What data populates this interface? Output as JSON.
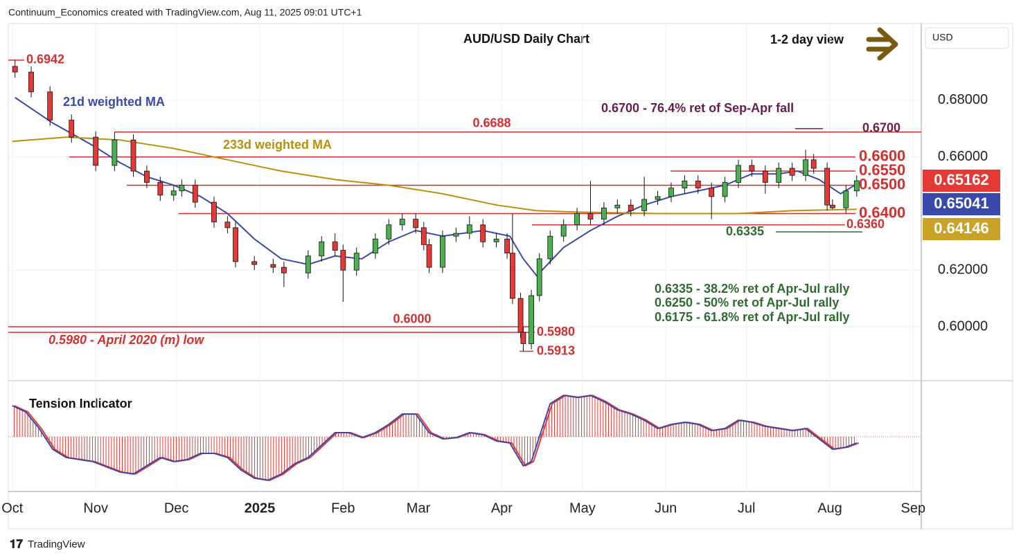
{
  "header": "Continuum_Economics created with TradingView.com, Aug 11, 2025 09:01 UTC+1",
  "footer": "TradingView",
  "chart_data": {
    "type": "candlestick",
    "title": "AUD/USD Daily Chart",
    "subtitle": "1-2 day view",
    "currency": "USD",
    "x": [
      1,
      7,
      14,
      22,
      31,
      38,
      45,
      50,
      55,
      60,
      63,
      68,
      75,
      80,
      83,
      90,
      97,
      101,
      110,
      115,
      120,
      123,
      128,
      135,
      140,
      145,
      150,
      153,
      155,
      160,
      165,
      170,
      175,
      180,
      184,
      186,
      189,
      190,
      193,
      196,
      200,
      205,
      210,
      215,
      220,
      225,
      230,
      235,
      240,
      245,
      250,
      255,
      260,
      265,
      270,
      275,
      280,
      285,
      290,
      295,
      298,
      303,
      305,
      310,
      314
    ],
    "open": [
      0.692,
      0.69,
      0.683,
      0.673,
      0.667,
      0.657,
      0.666,
      0.655,
      0.651,
      0.6465,
      0.648,
      0.65,
      0.644,
      0.637,
      0.635,
      0.623,
      0.622,
      0.621,
      0.619,
      0.625,
      0.63,
      0.627,
      0.62,
      0.626,
      0.631,
      0.636,
      0.638,
      0.635,
      0.629,
      0.621,
      0.632,
      0.633,
      0.636,
      0.63,
      0.631,
      0.626,
      0.61,
      0.598,
      0.594,
      0.611,
      0.624,
      0.632,
      0.636,
      0.64,
      0.638,
      0.642,
      0.643,
      0.641,
      0.645,
      0.646,
      0.649,
      0.6515,
      0.649,
      0.646,
      0.651,
      0.657,
      0.655,
      0.651,
      0.656,
      0.6535,
      0.659,
      0.656,
      0.643,
      0.642,
      0.648
    ],
    "high": [
      0.6942,
      0.692,
      0.685,
      0.675,
      0.669,
      0.6688,
      0.668,
      0.657,
      0.653,
      0.65,
      0.652,
      0.652,
      0.646,
      0.639,
      0.637,
      0.625,
      0.624,
      0.623,
      0.627,
      0.632,
      0.633,
      0.629,
      0.628,
      0.633,
      0.638,
      0.64,
      0.64,
      0.637,
      0.631,
      0.634,
      0.635,
      0.639,
      0.638,
      0.633,
      0.633,
      0.64,
      0.612,
      0.6,
      0.613,
      0.626,
      0.634,
      0.638,
      0.642,
      0.6515,
      0.644,
      0.645,
      0.645,
      0.653,
      0.648,
      0.651,
      0.6535,
      0.6535,
      0.651,
      0.653,
      0.659,
      0.659,
      0.657,
      0.658,
      0.658,
      0.6625,
      0.661,
      0.658,
      0.645,
      0.65,
      0.6535
    ],
    "low": [
      0.688,
      0.681,
      0.671,
      0.665,
      0.655,
      0.655,
      0.653,
      0.649,
      0.6445,
      0.6445,
      0.646,
      0.642,
      0.635,
      0.633,
      0.621,
      0.62,
      0.619,
      0.614,
      0.617,
      0.623,
      0.625,
      0.6088,
      0.618,
      0.624,
      0.629,
      0.634,
      0.633,
      0.627,
      0.619,
      0.619,
      0.63,
      0.631,
      0.628,
      0.628,
      0.624,
      0.608,
      0.596,
      0.5913,
      0.592,
      0.609,
      0.622,
      0.63,
      0.634,
      0.636,
      0.636,
      0.64,
      0.639,
      0.639,
      0.643,
      0.644,
      0.647,
      0.647,
      0.638,
      0.644,
      0.649,
      0.653,
      0.647,
      0.649,
      0.6515,
      0.6515,
      0.654,
      0.641,
      0.6415,
      0.64,
      0.646
    ],
    "close": [
      0.69,
      0.683,
      0.673,
      0.667,
      0.657,
      0.666,
      0.655,
      0.651,
      0.6465,
      0.648,
      0.65,
      0.644,
      0.637,
      0.635,
      0.623,
      0.622,
      0.621,
      0.619,
      0.625,
      0.63,
      0.627,
      0.62,
      0.626,
      0.631,
      0.636,
      0.638,
      0.635,
      0.629,
      0.621,
      0.632,
      0.633,
      0.636,
      0.63,
      0.631,
      0.626,
      0.61,
      0.598,
      0.594,
      0.611,
      0.624,
      0.632,
      0.636,
      0.64,
      0.638,
      0.642,
      0.643,
      0.641,
      0.645,
      0.646,
      0.649,
      0.6515,
      0.649,
      0.646,
      0.651,
      0.657,
      0.655,
      0.651,
      0.656,
      0.6535,
      0.659,
      0.656,
      0.643,
      0.642,
      0.648,
      0.6516
    ],
    "up_color": "#4caf50",
    "down_color": "#e53935",
    "series": [
      {
        "name": "21d weighted MA",
        "color": "#3949ab",
        "x": [
          1,
          15,
          30,
          40,
          50,
          60,
          70,
          80,
          90,
          100,
          110,
          120,
          130,
          140,
          150,
          160,
          175,
          185,
          190,
          195,
          205,
          215,
          225,
          235,
          245,
          255,
          265,
          275,
          285,
          292,
          300,
          308,
          314
        ],
        "values": [
          0.681,
          0.672,
          0.664,
          0.658,
          0.653,
          0.65,
          0.646,
          0.64,
          0.631,
          0.624,
          0.622,
          0.625,
          0.624,
          0.63,
          0.634,
          0.632,
          0.634,
          0.632,
          0.624,
          0.618,
          0.628,
          0.634,
          0.639,
          0.643,
          0.646,
          0.648,
          0.65,
          0.654,
          0.654,
          0.655,
          0.652,
          0.647,
          0.6504
        ]
      },
      {
        "name": "233d weighted MA",
        "color": "#b8900b",
        "x": [
          0,
          20,
          40,
          60,
          80,
          100,
          120,
          140,
          160,
          180,
          195,
          210,
          240,
          270,
          290,
          314
        ],
        "values": [
          0.6655,
          0.667,
          0.666,
          0.663,
          0.659,
          0.655,
          0.652,
          0.65,
          0.647,
          0.643,
          0.641,
          0.6405,
          0.64,
          0.64,
          0.641,
          0.6415
        ]
      }
    ],
    "price_labels": [
      {
        "value": 0.65162,
        "color": "#e53935"
      },
      {
        "value": 0.65041,
        "color": "#3949ab"
      },
      {
        "value": 0.64146,
        "color": "#c9a227"
      }
    ],
    "levels": [
      {
        "value": 0.6942,
        "label": "0.6942",
        "color": "#d32f2f"
      },
      {
        "value": 0.6688,
        "label": "0.6688",
        "color": "#d32f2f"
      },
      {
        "value": 0.67,
        "label": "0.6700",
        "color": "#6a1b4d"
      },
      {
        "value": 0.66,
        "label": "0.6600",
        "color": "#d32f2f"
      },
      {
        "value": 0.655,
        "label": "0.6550",
        "color": "#d32f2f"
      },
      {
        "value": 0.65,
        "label": "0.6500",
        "color": "#d32f2f"
      },
      {
        "value": 0.64,
        "label": "0.6400",
        "color": "#d32f2f"
      },
      {
        "value": 0.636,
        "label": "0.6360",
        "color": "#d32f2f"
      },
      {
        "value": 0.6335,
        "label": "0.6335",
        "color": "#2e6b2e"
      },
      {
        "value": 0.6,
        "label": "0.6000",
        "color": "#d32f2f"
      },
      {
        "value": 0.598,
        "label": "0.5980",
        "color": "#d32f2f"
      },
      {
        "value": 0.5913,
        "label": "0.5913",
        "color": "#d32f2f"
      }
    ],
    "annotations": [
      "0.6700 - 76.4% ret of Sep-Apr fall",
      "0.5980 - April 2020 (m) low",
      "0.6335 - 38.2% ret of Apr-Jul rally",
      "0.6250 - 50% ret of Apr-Jul rally",
      "0.6175 - 61.8% ret of Apr-Jul rally"
    ],
    "xlim": [
      -1.5,
      338
    ],
    "ylim": [
      0.5814,
      0.7069
    ],
    "xticks": [
      {
        "value": 0,
        "label": "Oct"
      },
      {
        "value": 31,
        "label": "Nov"
      },
      {
        "value": 61,
        "label": "Dec"
      },
      {
        "value": 92,
        "label": "2025"
      },
      {
        "value": 123,
        "label": "Feb"
      },
      {
        "value": 151,
        "label": "Mar"
      },
      {
        "value": 182,
        "label": "Apr"
      },
      {
        "value": 212,
        "label": "May"
      },
      {
        "value": 243,
        "label": "Jun"
      },
      {
        "value": 273,
        "label": "Jul"
      },
      {
        "value": 304,
        "label": "Aug"
      },
      {
        "value": 335,
        "label": "Sep"
      }
    ],
    "yticks": [
      {
        "value": 0.68,
        "label": "0.68000"
      },
      {
        "value": 0.66,
        "label": "0.66000"
      },
      {
        "value": 0.62,
        "label": "0.62000"
      },
      {
        "value": 0.6,
        "label": "0.60000"
      }
    ],
    "grid": true,
    "indicator": {
      "name": "Tension Indicator",
      "color": "#e53935",
      "line_color": "#3949ab",
      "ylim": [
        -1.32,
        1.27
      ],
      "x": [
        0,
        5,
        10,
        15,
        20,
        30,
        40,
        45,
        50,
        55,
        60,
        65,
        70,
        75,
        80,
        85,
        90,
        95,
        100,
        105,
        110,
        115,
        120,
        125,
        130,
        135,
        140,
        145,
        150,
        155,
        160,
        165,
        170,
        175,
        180,
        185,
        190,
        193,
        196,
        200,
        205,
        210,
        215,
        220,
        225,
        230,
        235,
        240,
        245,
        250,
        255,
        260,
        265,
        270,
        275,
        280,
        285,
        290,
        295,
        300,
        305,
        310,
        314
      ],
      "values": [
        0.75,
        0.6,
        0.2,
        -0.3,
        -0.5,
        -0.6,
        -0.85,
        -0.9,
        -0.7,
        -0.5,
        -0.6,
        -0.55,
        -0.4,
        -0.4,
        -0.5,
        -0.8,
        -1.0,
        -1.05,
        -0.9,
        -0.65,
        -0.5,
        -0.2,
        0.1,
        0.1,
        -0.02,
        0.1,
        0.3,
        0.55,
        0.55,
        0.1,
        -0.05,
        -0.02,
        0.1,
        0.05,
        -0.1,
        -0.15,
        -0.7,
        -0.6,
        0,
        0.8,
        1.0,
        0.95,
        1.0,
        0.85,
        0.65,
        0.55,
        0.4,
        0.2,
        0.3,
        0.35,
        0.3,
        0.15,
        0.2,
        0.4,
        0.35,
        0.25,
        0.2,
        0.15,
        0.2,
        -0.05,
        -0.3,
        -0.25,
        -0.15
      ]
    }
  }
}
